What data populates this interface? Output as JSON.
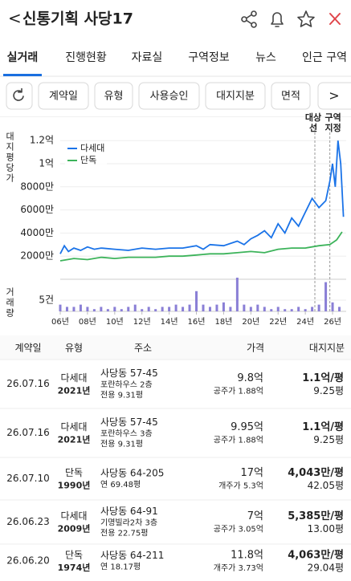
{
  "header": {
    "back": "<",
    "title": "신통기획 사당17"
  },
  "tabs": [
    "실거래",
    "진행현황",
    "자료실",
    "구역정보",
    "뉴스",
    "인근 구역"
  ],
  "active_tab": 0,
  "filters": [
    "계약일",
    "유형",
    "사용승인",
    "대지지분",
    "면적"
  ],
  "filter_more": ">",
  "chart": {
    "type": "line",
    "y_label": "대지평당가",
    "volume_label": "거래량",
    "legend": "top-left",
    "grid": true,
    "xlim": [
      2006,
      2027
    ],
    "xticks": [
      {
        "value": 2006,
        "label": "06년"
      },
      {
        "value": 2008,
        "label": "08년"
      },
      {
        "value": 2010,
        "label": "10년"
      },
      {
        "value": 2012,
        "label": "12년"
      },
      {
        "value": 2014,
        "label": "14년"
      },
      {
        "value": 2016,
        "label": "16년"
      },
      {
        "value": 2018,
        "label": "18년"
      },
      {
        "value": 2020,
        "label": "20년"
      },
      {
        "value": 2022,
        "label": "22년"
      },
      {
        "value": 2024,
        "label": "24년"
      },
      {
        "value": 2026,
        "label": "26년"
      }
    ],
    "ylim": [
      0,
      12500
    ],
    "yticks": [
      {
        "value": 2000,
        "label": "2000만"
      },
      {
        "value": 4000,
        "label": "4000만"
      },
      {
        "value": 6000,
        "label": "6000만"
      },
      {
        "value": 8000,
        "label": "8000만"
      },
      {
        "value": 10000,
        "label": "1억"
      },
      {
        "value": 12000,
        "label": "1.2억"
      }
    ],
    "series": [
      {
        "name": "다세대",
        "color": "#1a73e8",
        "x": [
          2006,
          2006.3,
          2006.6,
          2007,
          2007.5,
          2008,
          2008.5,
          2009,
          2010,
          2011,
          2012,
          2013,
          2014,
          2015,
          2016,
          2016.5,
          2017,
          2018,
          2019,
          2019.5,
          2020,
          2020.5,
          2021,
          2021.5,
          2022,
          2022.5,
          2023,
          2023.5,
          2024,
          2024.5,
          2025,
          2025.5,
          2025.8,
          2026,
          2026.2,
          2026.4,
          2026.6,
          2026.8
        ],
        "values": [
          2200,
          2900,
          2400,
          2700,
          2500,
          2800,
          2600,
          2700,
          2600,
          2500,
          2700,
          2600,
          2700,
          2700,
          2900,
          2600,
          3000,
          2900,
          3300,
          3000,
          3500,
          3800,
          4200,
          3600,
          4800,
          4000,
          5300,
          4600,
          5800,
          7000,
          6200,
          6800,
          8500,
          10000,
          8000,
          12000,
          10000,
          5400
        ]
      },
      {
        "name": "단독",
        "color": "#3cb35a",
        "x": [
          2006,
          2007,
          2008,
          2009,
          2010,
          2011,
          2012,
          2013,
          2014,
          2015,
          2016,
          2017,
          2018,
          2019,
          2020,
          2021,
          2022,
          2023,
          2024,
          2025,
          2025.8,
          2026.3,
          2026.7
        ],
        "values": [
          1600,
          1800,
          1700,
          1900,
          1800,
          1900,
          1900,
          1900,
          2000,
          2000,
          2100,
          2200,
          2200,
          2300,
          2400,
          2300,
          2600,
          2700,
          2700,
          2900,
          3000,
          3400,
          4100
        ]
      }
    ],
    "annotations": [
      {
        "x": 2024.7,
        "lines": [
          "대상",
          "선"
        ]
      },
      {
        "x": 2025.8,
        "lines": [
          "구역",
          "지정"
        ]
      }
    ],
    "volume": {
      "color": "#8a7fd6",
      "ylim": [
        0,
        15
      ],
      "yticks": [
        {
          "value": 5,
          "label": "5건"
        }
      ],
      "x": [
        2006,
        2006.5,
        2007,
        2007.5,
        2008,
        2008.5,
        2009,
        2009.5,
        2010,
        2010.5,
        2011,
        2011.5,
        2012,
        2012.5,
        2013,
        2013.5,
        2014,
        2014.5,
        2015,
        2015.5,
        2016,
        2016.5,
        2017,
        2017.5,
        2018,
        2018.5,
        2019,
        2019.5,
        2020,
        2020.5,
        2021,
        2021.5,
        2022,
        2022.5,
        2023,
        2023.5,
        2024,
        2024.5,
        2025,
        2025.5,
        2026,
        2026.5
      ],
      "values": [
        3,
        2,
        2,
        3,
        2,
        1,
        2,
        1,
        2,
        1,
        2,
        3,
        1,
        2,
        1,
        2,
        2,
        3,
        2,
        3,
        9,
        3,
        2,
        3,
        4,
        2,
        15,
        3,
        2,
        3,
        2,
        1,
        2,
        1,
        1,
        2,
        1,
        2,
        3,
        13,
        4,
        2
      ]
    }
  },
  "table": {
    "columns": [
      "계약일",
      "유형",
      "주소",
      "가격",
      "대지지분"
    ],
    "rows": [
      {
        "date": "26.07.16",
        "type": "다세대",
        "year": "2021년",
        "year_color": "#2e9e3e",
        "address": [
          "사당동 57-45",
          "포란하우스 2층",
          "전용 9.31평"
        ],
        "price": "9.8억",
        "official": "공주가 1.88억",
        "unit_price": "1.1억/평",
        "land": "9.25평"
      },
      {
        "date": "26.07.16",
        "type": "다세대",
        "year": "2021년",
        "year_color": "#2e9e3e",
        "address": [
          "사당동 57-45",
          "포란하우스 3층",
          "전용 9.31평"
        ],
        "price": "9.95억",
        "official": "공주가 1.88억",
        "unit_price": "1.1억/평",
        "land": "9.25평"
      },
      {
        "date": "26.07.10",
        "type": "단독",
        "year": "1990년",
        "year_color": "#222222",
        "address": [
          "사당동 64-205",
          "연 69.48평"
        ],
        "price": "17억",
        "official": "개주가 5.3억",
        "unit_price": "4,043만/평",
        "land": "42.05평"
      },
      {
        "date": "26.06.23",
        "type": "다세대",
        "year": "2009년",
        "year_color": "#2e9e3e",
        "address": [
          "사당동 64-91",
          "기명빌라2차 3층",
          "전용 22.75평"
        ],
        "price": "7억",
        "official": "공주가 3.05억",
        "unit_price": "5,385만/평",
        "land": "13.00평"
      },
      {
        "date": "26.06.20",
        "type": "단독",
        "year": "1974년",
        "year_color": "#222222",
        "address": [
          "사당동 64-211",
          "연 18.17평"
        ],
        "price": "11.8억",
        "official": "개주가 3.73억",
        "unit_price": "4,063만/평",
        "land": "29.04평"
      }
    ]
  }
}
